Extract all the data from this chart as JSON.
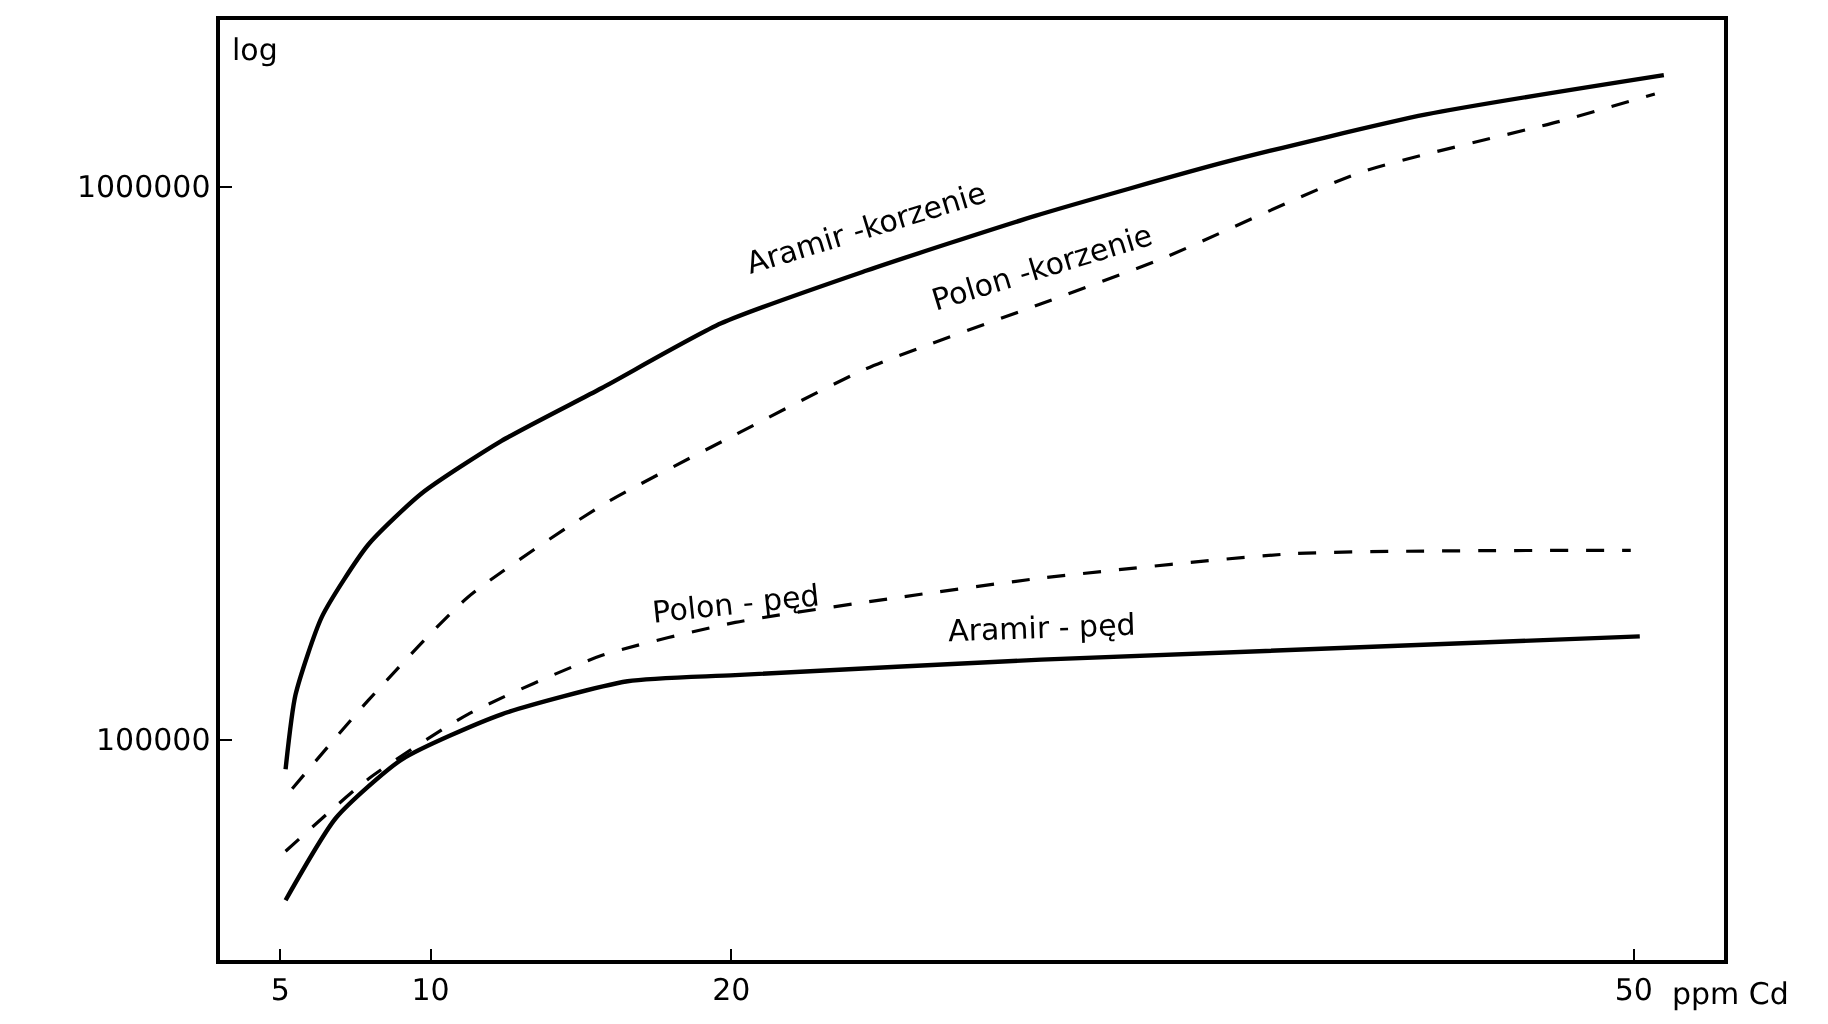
{
  "chart_data": {
    "type": "line",
    "xlabel": "ppm Cd",
    "ylabel": "log",
    "log": "y",
    "xlim": [
      3,
      53
    ],
    "ylim": [
      40000,
      2000000
    ],
    "xticks": [
      5,
      10,
      20,
      50
    ],
    "yticks": [
      100000,
      1000000
    ],
    "series": [
      {
        "name": "Aramir -korzenie",
        "color": "#000000",
        "line_style": "solid",
        "x": [
          5.18,
          5.51,
          6.39,
          7.92,
          9.71,
          12.36,
          15.68,
          19.66,
          24.5,
          30.1,
          36.5,
          43.1,
          51.0
        ],
        "values": [
          88500,
          120600,
          167000,
          225000,
          279000,
          347000,
          432000,
          566000,
          705000,
          885000,
          1110000,
          1350000,
          1590000
        ]
      },
      {
        "name": "Polon -korzenie",
        "color": "#000000",
        "line_style": "dashed",
        "x": [
          5.4,
          7.92,
          11.24,
          15.68,
          20.13,
          24.5,
          30.3,
          34.3,
          40.9,
          47.5,
          50.7
        ],
        "values": [
          81600,
          117700,
          181000,
          265000,
          356000,
          469000,
          614000,
          740000,
          1060000,
          1310000,
          1470000
        ]
      },
      {
        "name": "Polon - pęd",
        "color": "#000000",
        "line_style": "dashed",
        "x": [
          5.18,
          7.92,
          11.24,
          15.68,
          20.13,
          25.6,
          30.3,
          38.7,
          49.9
        ],
        "values": [
          62900,
          84900,
          111200,
          142000,
          163000,
          181000,
          196000,
          217000,
          220000
        ]
      },
      {
        "name": "Aramir - pęd",
        "color": "#000000",
        "line_style": "solid",
        "x": [
          5.18,
          6.86,
          9.05,
          12.36,
          16.55,
          20.13,
          30.3,
          50.2
        ],
        "values": [
          51300,
          72300,
          92200,
          111200,
          127600,
          130900,
          139600,
          153800
        ]
      }
    ]
  }
}
